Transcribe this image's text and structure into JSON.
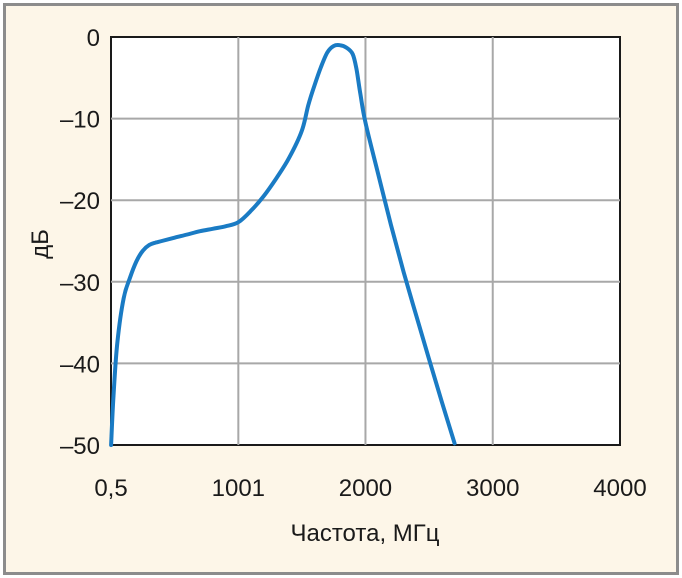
{
  "chart_data": {
    "type": "line",
    "xlabel": "Частота, МГц",
    "ylabel": "дБ",
    "x_tick_labels": [
      "0,5",
      "1001",
      "2000",
      "3000",
      "4000"
    ],
    "x_tick_values": [
      0.5,
      1001,
      2000,
      3000,
      4000
    ],
    "y_tick_labels": [
      "0",
      "–10",
      "–20",
      "–30",
      "–40",
      "–50"
    ],
    "y_tick_values": [
      0,
      -10,
      -20,
      -30,
      -40,
      -50
    ],
    "xlim": [
      0.5,
      4000
    ],
    "ylim": [
      -50,
      0
    ],
    "grid": true,
    "series": [
      {
        "color": "#1a7bc4",
        "x": [
          1,
          20,
          50,
          100,
          150,
          200,
          250,
          300,
          350,
          400,
          500,
          600,
          700,
          800,
          900,
          1001,
          1100,
          1200,
          1300,
          1400,
          1500,
          1550,
          1600,
          1650,
          1700,
          1750,
          1800,
          1850,
          1900,
          1930,
          1960,
          2000,
          2100,
          2200,
          2300,
          2400,
          2500,
          2600,
          2700
        ],
        "y": [
          -50,
          -44,
          -37.5,
          -32,
          -29.5,
          -27.5,
          -26.2,
          -25.5,
          -25.2,
          -25,
          -24.6,
          -24.2,
          -23.8,
          -23.5,
          -23.2,
          -22.7,
          -21.3,
          -19.5,
          -17.3,
          -14.8,
          -11.5,
          -8.4,
          -5.9,
          -3.7,
          -1.9,
          -1.1,
          -1,
          -1.3,
          -2.1,
          -4,
          -7,
          -10.5,
          -16.8,
          -23,
          -28.8,
          -34.2,
          -39.5,
          -44.7,
          -49.8
        ]
      }
    ]
  }
}
